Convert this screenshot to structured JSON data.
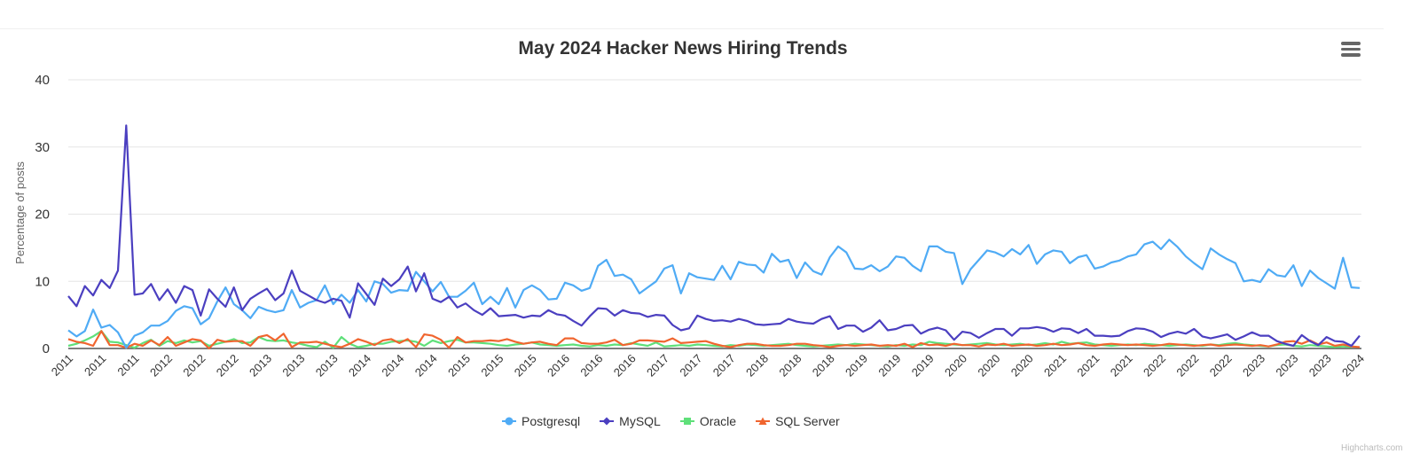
{
  "chart_data": {
    "type": "line",
    "title": "May 2024 Hacker News Hiring Trends",
    "xlabel": "",
    "ylabel": "Percentage of posts",
    "ylim": [
      0,
      40
    ],
    "yticks": [
      0,
      10,
      20,
      30,
      40
    ],
    "grid": true,
    "legend_position": "bottom-center",
    "xtick_every": 4,
    "xtick_labels": [
      "2011",
      "2011",
      "2011",
      "2012",
      "2012",
      "2012",
      "2013",
      "2013",
      "2013",
      "2014",
      "2014",
      "2014",
      "2015",
      "2015",
      "2015",
      "2016",
      "2016",
      "2016",
      "2017",
      "2017",
      "2017",
      "2018",
      "2018",
      "2018",
      "2019",
      "2019",
      "2019",
      "2020",
      "2020",
      "2020",
      "2021",
      "2021",
      "2021",
      "2022",
      "2022",
      "2022",
      "2023",
      "2023",
      "2023",
      "2024"
    ],
    "num_points": 157,
    "series": [
      {
        "name": "Postgresql",
        "color": "#4fabf5",
        "marker": "circle",
        "values": [
          2.7,
          1.8,
          2.6,
          5.8,
          3.1,
          3.5,
          2.4,
          0.1,
          1.9,
          2.4,
          3.4,
          3.4,
          4.1,
          5.6,
          6.3,
          6.0,
          3.6,
          4.5,
          7.0,
          9.1,
          6.6,
          5.7,
          4.5,
          6.2,
          5.7,
          5.4,
          5.7,
          8.7,
          6.1,
          6.8,
          7.2,
          9.4,
          6.6,
          8.0,
          6.8,
          8.7,
          7.0,
          10.0,
          9.6,
          8.3,
          8.7,
          8.6,
          11.4,
          10.0,
          8.5,
          9.9,
          7.7,
          7.7,
          8.6,
          9.8,
          6.6,
          7.7,
          6.6,
          9.0,
          6.1,
          8.7,
          9.4,
          8.7,
          7.3,
          7.4,
          9.8,
          9.4,
          8.6,
          9.0,
          12.3,
          13.2,
          10.8,
          11.0,
          10.3,
          8.2,
          9.1,
          10.0,
          11.9,
          12.4,
          8.2,
          11.2,
          10.6,
          10.4,
          10.2,
          12.3,
          10.3,
          12.9,
          12.5,
          12.4,
          11.3,
          14.1,
          12.9,
          13.2,
          10.5,
          12.8,
          11.5,
          11.0,
          13.6,
          15.2,
          14.3,
          11.9,
          11.8,
          12.4,
          11.5,
          12.2,
          13.7,
          13.5,
          12.3,
          11.5,
          15.2,
          15.2,
          14.4,
          14.2,
          9.6,
          11.8,
          13.2,
          14.6,
          14.3,
          13.7,
          14.8,
          14.0,
          15.4,
          12.6,
          14.0,
          14.6,
          14.4,
          12.7,
          13.6,
          13.9,
          11.9,
          12.2,
          12.8,
          13.1,
          13.7,
          14.0,
          15.5,
          15.9,
          14.8,
          16.2,
          15.1,
          13.7,
          12.7,
          11.8,
          14.9,
          14.0,
          13.3,
          12.7,
          10.0,
          10.2,
          9.9,
          11.8,
          10.9,
          10.7,
          12.4,
          9.3,
          11.6,
          10.5,
          9.7,
          8.9,
          13.5,
          9.1,
          9.0
        ]
      },
      {
        "name": "MySQL",
        "color": "#4b3fc0",
        "marker": "diamond",
        "values": [
          7.8,
          6.3,
          9.3,
          7.9,
          10.2,
          9.0,
          11.6,
          33.2,
          8.0,
          8.2,
          9.6,
          7.2,
          8.8,
          6.8,
          9.3,
          8.7,
          4.9,
          8.8,
          7.4,
          6.2,
          9.1,
          5.7,
          7.4,
          8.2,
          8.9,
          7.2,
          8.2,
          11.6,
          8.6,
          7.9,
          7.2,
          6.8,
          7.4,
          7.1,
          4.6,
          9.7,
          8.1,
          6.5,
          10.4,
          9.3,
          10.3,
          12.2,
          8.5,
          11.2,
          7.4,
          6.9,
          7.7,
          6.1,
          6.7,
          5.7,
          5.0,
          6.0,
          4.8,
          4.9,
          5.0,
          4.6,
          4.9,
          4.8,
          5.7,
          5.1,
          4.9,
          4.1,
          3.4,
          4.8,
          6.0,
          5.9,
          4.9,
          5.7,
          5.3,
          5.2,
          4.7,
          5.0,
          4.9,
          3.5,
          2.7,
          3.0,
          4.9,
          4.4,
          4.1,
          4.2,
          4.0,
          4.4,
          4.1,
          3.6,
          3.5,
          3.6,
          3.7,
          4.4,
          4.0,
          3.8,
          3.7,
          4.4,
          4.8,
          2.9,
          3.4,
          3.4,
          2.5,
          3.1,
          4.2,
          2.7,
          2.9,
          3.4,
          3.5,
          2.2,
          2.8,
          3.1,
          2.7,
          1.3,
          2.5,
          2.3,
          1.6,
          2.3,
          2.9,
          2.9,
          1.9,
          3.0,
          3.0,
          3.2,
          3.0,
          2.5,
          3.0,
          2.9,
          2.3,
          2.9,
          1.9,
          1.9,
          1.8,
          1.9,
          2.6,
          3.0,
          2.9,
          2.5,
          1.7,
          2.2,
          2.5,
          2.2,
          2.9,
          1.8,
          1.5,
          1.8,
          2.1,
          1.3,
          1.8,
          2.4,
          1.9,
          1.9,
          1.1,
          0.7,
          0.4,
          2.0,
          1.1,
          0.5,
          1.7,
          1.1,
          1.0,
          0.4,
          1.9
        ]
      },
      {
        "name": "Oracle",
        "color": "#5fe07a",
        "marker": "square",
        "values": [
          0.4,
          0.7,
          1.2,
          1.8,
          2.6,
          1.0,
          0.9,
          0.5,
          0.1,
          0.8,
          1.3,
          0.4,
          1.1,
          0.8,
          1.2,
          0.9,
          1.1,
          0.4,
          0.7,
          1.0,
          1.4,
          0.8,
          0.9,
          1.7,
          1.2,
          1.1,
          1.2,
          0.9,
          0.7,
          0.4,
          0.2,
          1.0,
          0.1,
          1.7,
          0.7,
          0.2,
          0.4,
          0.7,
          0.7,
          1.0,
          1.1,
          1.2,
          1.0,
          0.4,
          1.2,
          0.8,
          1.1,
          1.3,
          0.9,
          0.9,
          0.8,
          0.7,
          0.5,
          0.4,
          0.6,
          0.7,
          0.9,
          0.6,
          0.5,
          0.4,
          0.5,
          0.6,
          0.4,
          0.3,
          0.5,
          0.4,
          0.6,
          0.5,
          0.8,
          0.6,
          0.4,
          0.9,
          0.3,
          0.4,
          0.5,
          0.4,
          0.6,
          0.5,
          0.4,
          0.3,
          0.5,
          0.4,
          0.6,
          0.5,
          0.4,
          0.5,
          0.6,
          0.7,
          0.5,
          0.4,
          0.3,
          0.4,
          0.5,
          0.6,
          0.5,
          0.7,
          0.6,
          0.5,
          0.4,
          0.3,
          0.5,
          0.4,
          0.6,
          0.5,
          1.0,
          0.8,
          0.7,
          0.6,
          0.5,
          0.6,
          0.7,
          0.8,
          0.6,
          0.5,
          0.6,
          0.7,
          0.5,
          0.6,
          0.8,
          0.6,
          1.0,
          0.7,
          0.8,
          0.9,
          0.6,
          0.5,
          0.4,
          0.5,
          0.6,
          0.5,
          0.7,
          0.6,
          0.5,
          0.4,
          0.5,
          0.6,
          0.5,
          0.4,
          0.6,
          0.5,
          0.7,
          0.8,
          0.6,
          0.5,
          0.4,
          0.3,
          0.5,
          0.6,
          0.4,
          0.3,
          0.5,
          0.4,
          0.3,
          0.2,
          0.3,
          0.2
        ]
      },
      {
        "name": "SQL Server",
        "color": "#f0652f",
        "marker": "triangle",
        "values": [
          1.4,
          1.0,
          0.8,
          0.4,
          2.6,
          0.5,
          0.5,
          0.1,
          0.7,
          0.4,
          1.2,
          0.5,
          1.7,
          0.4,
          0.9,
          1.4,
          1.2,
          0.0,
          1.3,
          1.0,
          1.1,
          1.1,
          0.4,
          1.7,
          2.0,
          1.2,
          2.2,
          0.2,
          0.9,
          0.9,
          1.0,
          0.7,
          0.4,
          0.2,
          0.7,
          1.4,
          1.0,
          0.5,
          1.2,
          1.4,
          0.8,
          1.4,
          0.2,
          2.1,
          1.9,
          1.3,
          0.1,
          1.7,
          0.9,
          1.1,
          1.1,
          1.2,
          1.1,
          1.4,
          1.0,
          0.7,
          0.9,
          1.0,
          0.7,
          0.5,
          1.5,
          1.5,
          0.8,
          0.7,
          0.7,
          0.9,
          1.3,
          0.5,
          0.7,
          1.2,
          1.2,
          1.1,
          1.0,
          1.5,
          0.8,
          0.9,
          1.0,
          1.1,
          0.7,
          0.4,
          0.2,
          0.5,
          0.7,
          0.7,
          0.5,
          0.4,
          0.4,
          0.5,
          0.7,
          0.7,
          0.5,
          0.4,
          0.2,
          0.4,
          0.5,
          0.4,
          0.5,
          0.6,
          0.4,
          0.5,
          0.4,
          0.7,
          0.2,
          0.8,
          0.5,
          0.6,
          0.4,
          0.7,
          0.5,
          0.5,
          0.3,
          0.6,
          0.5,
          0.7,
          0.4,
          0.5,
          0.6,
          0.4,
          0.5,
          0.7,
          0.5,
          0.6,
          0.8,
          0.5,
          0.4,
          0.6,
          0.7,
          0.6,
          0.5,
          0.6,
          0.5,
          0.4,
          0.5,
          0.7,
          0.6,
          0.5,
          0.4,
          0.5,
          0.6,
          0.4,
          0.5,
          0.6,
          0.5,
          0.4,
          0.5,
          0.3,
          0.6,
          1.0,
          1.1,
          0.7,
          1.2,
          0.6,
          0.9,
          0.4,
          0.6,
          0.3,
          0.2
        ]
      }
    ]
  },
  "ui": {
    "menu_icon": "hamburger-menu-icon",
    "credits": "Highcharts.com"
  }
}
